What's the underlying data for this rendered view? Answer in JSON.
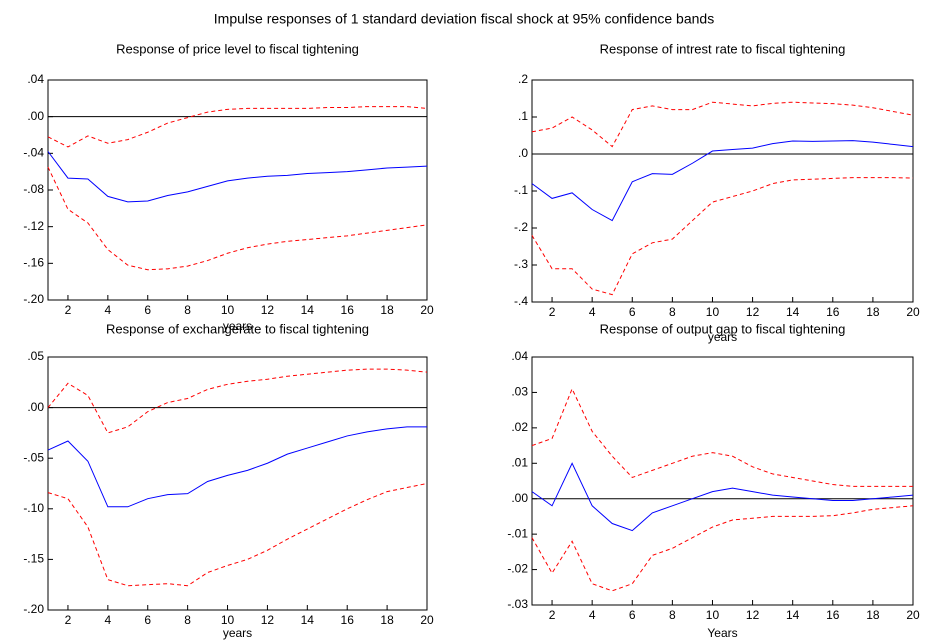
{
  "title": "Impulse responses of  1 standard deviation  fiscal shock at 95% confidence bands",
  "chart_data": [
    {
      "type": "line",
      "title": "Response of price level to fiscal tightening",
      "xlabel": "years",
      "x": [
        1,
        2,
        3,
        4,
        5,
        6,
        7,
        8,
        9,
        10,
        11,
        12,
        13,
        14,
        15,
        16,
        17,
        18,
        19,
        20
      ],
      "xlim": [
        1,
        20
      ],
      "xticks": [
        2,
        4,
        6,
        8,
        10,
        12,
        14,
        16,
        18,
        20
      ],
      "ylim": [
        -0.2,
        0.04
      ],
      "yticks": [
        {
          "value": 0.04,
          "label": ".04"
        },
        {
          "value": 0.0,
          "label": ".00"
        },
        {
          "value": -0.04,
          "label": "-.04"
        },
        {
          "value": -0.08,
          "label": "-.08"
        },
        {
          "value": -0.12,
          "label": "-.12"
        },
        {
          "value": -0.16,
          "label": "-.16"
        },
        {
          "value": -0.2,
          "label": "-.20"
        }
      ],
      "zero_line": true,
      "series": [
        {
          "color": "#0000ff",
          "dash": false,
          "values": [
            -0.038,
            -0.067,
            -0.068,
            -0.087,
            -0.093,
            -0.092,
            -0.086,
            -0.082,
            -0.076,
            -0.07,
            -0.067,
            -0.065,
            -0.064,
            -0.062,
            -0.061,
            -0.06,
            -0.058,
            -0.056,
            -0.055,
            -0.054
          ]
        },
        {
          "color": "#ff0000",
          "dash": true,
          "values": [
            -0.022,
            -0.033,
            -0.021,
            -0.029,
            -0.025,
            -0.017,
            -0.007,
            -0.001,
            0.005,
            0.008,
            0.009,
            0.009,
            0.009,
            0.009,
            0.01,
            0.01,
            0.011,
            0.011,
            0.011,
            0.009
          ]
        },
        {
          "color": "#ff0000",
          "dash": true,
          "values": [
            -0.055,
            -0.101,
            -0.116,
            -0.145,
            -0.162,
            -0.167,
            -0.166,
            -0.163,
            -0.157,
            -0.149,
            -0.143,
            -0.139,
            -0.136,
            -0.134,
            -0.132,
            -0.13,
            -0.127,
            -0.124,
            -0.121,
            -0.118
          ]
        }
      ]
    },
    {
      "type": "line",
      "title": "Response of intrest rate to fiscal tightening",
      "xlabel": "years",
      "x": [
        1,
        2,
        3,
        4,
        5,
        6,
        7,
        8,
        9,
        10,
        11,
        12,
        13,
        14,
        15,
        16,
        17,
        18,
        19,
        20
      ],
      "xlim": [
        1,
        20
      ],
      "xticks": [
        2,
        4,
        6,
        8,
        10,
        12,
        14,
        16,
        18,
        20
      ],
      "ylim": [
        -0.4,
        0.2
      ],
      "yticks": [
        {
          "value": 0.2,
          "label": ".2"
        },
        {
          "value": 0.1,
          "label": ".1"
        },
        {
          "value": 0.0,
          "label": ".0"
        },
        {
          "value": -0.1,
          "label": "-.1"
        },
        {
          "value": -0.2,
          "label": "-.2"
        },
        {
          "value": -0.3,
          "label": "-.3"
        },
        {
          "value": -0.4,
          "label": "-.4"
        }
      ],
      "zero_line": true,
      "series": [
        {
          "color": "#0000ff",
          "dash": false,
          "values": [
            -0.08,
            -0.12,
            -0.105,
            -0.15,
            -0.18,
            -0.075,
            -0.053,
            -0.055,
            -0.025,
            0.008,
            0.012,
            0.016,
            0.028,
            0.035,
            0.034,
            0.035,
            0.036,
            0.032,
            0.026,
            0.02
          ]
        },
        {
          "color": "#ff0000",
          "dash": true,
          "values": [
            0.06,
            0.07,
            0.1,
            0.065,
            0.02,
            0.12,
            0.13,
            0.12,
            0.12,
            0.14,
            0.135,
            0.13,
            0.137,
            0.14,
            0.138,
            0.136,
            0.132,
            0.125,
            0.115,
            0.105
          ]
        },
        {
          "color": "#ff0000",
          "dash": true,
          "values": [
            -0.22,
            -0.31,
            -0.31,
            -0.365,
            -0.38,
            -0.27,
            -0.24,
            -0.23,
            -0.18,
            -0.13,
            -0.115,
            -0.1,
            -0.08,
            -0.07,
            -0.068,
            -0.066,
            -0.064,
            -0.064,
            -0.064,
            -0.065
          ]
        }
      ]
    },
    {
      "type": "line",
      "title": "Response of exchangerate to fiscal tightening",
      "xlabel": "years",
      "x": [
        1,
        2,
        3,
        4,
        5,
        6,
        7,
        8,
        9,
        10,
        11,
        12,
        13,
        14,
        15,
        16,
        17,
        18,
        19,
        20
      ],
      "xlim": [
        1,
        20
      ],
      "xticks": [
        2,
        4,
        6,
        8,
        10,
        12,
        14,
        16,
        18,
        20
      ],
      "ylim": [
        -0.2,
        0.05
      ],
      "yticks": [
        {
          "value": 0.05,
          "label": ".05"
        },
        {
          "value": 0.0,
          "label": ".00"
        },
        {
          "value": -0.05,
          "label": "-.05"
        },
        {
          "value": -0.1,
          "label": "-.10"
        },
        {
          "value": -0.15,
          "label": "-.15"
        },
        {
          "value": -0.2,
          "label": "-.20"
        }
      ],
      "zero_line": true,
      "series": [
        {
          "color": "#0000ff",
          "dash": false,
          "values": [
            -0.042,
            -0.033,
            -0.053,
            -0.098,
            -0.098,
            -0.09,
            -0.086,
            -0.085,
            -0.073,
            -0.067,
            -0.062,
            -0.055,
            -0.046,
            -0.04,
            -0.034,
            -0.028,
            -0.024,
            -0.021,
            -0.019,
            -0.019
          ]
        },
        {
          "color": "#ff0000",
          "dash": true,
          "values": [
            0.0,
            0.024,
            0.012,
            -0.025,
            -0.019,
            -0.004,
            0.005,
            0.009,
            0.018,
            0.023,
            0.026,
            0.028,
            0.031,
            0.033,
            0.035,
            0.037,
            0.038,
            0.038,
            0.037,
            0.035
          ]
        },
        {
          "color": "#ff0000",
          "dash": true,
          "values": [
            -0.084,
            -0.09,
            -0.118,
            -0.17,
            -0.176,
            -0.175,
            -0.174,
            -0.176,
            -0.163,
            -0.156,
            -0.15,
            -0.141,
            -0.13,
            -0.12,
            -0.11,
            -0.1,
            -0.091,
            -0.083,
            -0.079,
            -0.075
          ]
        }
      ]
    },
    {
      "type": "line",
      "title": "Response of output gap to fiscal tightening",
      "xlabel": "Years",
      "x": [
        1,
        2,
        3,
        4,
        5,
        6,
        7,
        8,
        9,
        10,
        11,
        12,
        13,
        14,
        15,
        16,
        17,
        18,
        19,
        20
      ],
      "xlim": [
        1,
        20
      ],
      "xticks": [
        2,
        4,
        6,
        8,
        10,
        12,
        14,
        16,
        18,
        20
      ],
      "ylim": [
        -0.03,
        0.04
      ],
      "yticks": [
        {
          "value": 0.04,
          "label": ".04"
        },
        {
          "value": 0.03,
          "label": ".03"
        },
        {
          "value": 0.02,
          "label": ".02"
        },
        {
          "value": 0.01,
          "label": ".01"
        },
        {
          "value": 0.0,
          "label": ".00"
        },
        {
          "value": -0.01,
          "label": "-.01"
        },
        {
          "value": -0.02,
          "label": "-.02"
        },
        {
          "value": -0.03,
          "label": "-.03"
        }
      ],
      "zero_line": true,
      "series": [
        {
          "color": "#0000ff",
          "dash": false,
          "values": [
            0.002,
            -0.002,
            0.01,
            -0.002,
            -0.007,
            -0.009,
            -0.004,
            -0.002,
            0.0,
            0.002,
            0.003,
            0.002,
            0.001,
            0.0005,
            0,
            -0.0005,
            -0.0005,
            0,
            0.0005,
            0.001
          ]
        },
        {
          "color": "#ff0000",
          "dash": true,
          "values": [
            0.015,
            0.017,
            0.031,
            0.019,
            0.012,
            0.006,
            0.008,
            0.01,
            0.012,
            0.013,
            0.012,
            0.009,
            0.007,
            0.006,
            0.005,
            0.004,
            0.0035,
            0.0035,
            0.0035,
            0.0035
          ]
        },
        {
          "color": "#ff0000",
          "dash": true,
          "values": [
            -0.011,
            -0.021,
            -0.012,
            -0.024,
            -0.026,
            -0.024,
            -0.016,
            -0.014,
            -0.011,
            -0.008,
            -0.006,
            -0.0055,
            -0.005,
            -0.005,
            -0.005,
            -0.0048,
            -0.004,
            -0.003,
            -0.0025,
            -0.002
          ]
        }
      ]
    }
  ]
}
